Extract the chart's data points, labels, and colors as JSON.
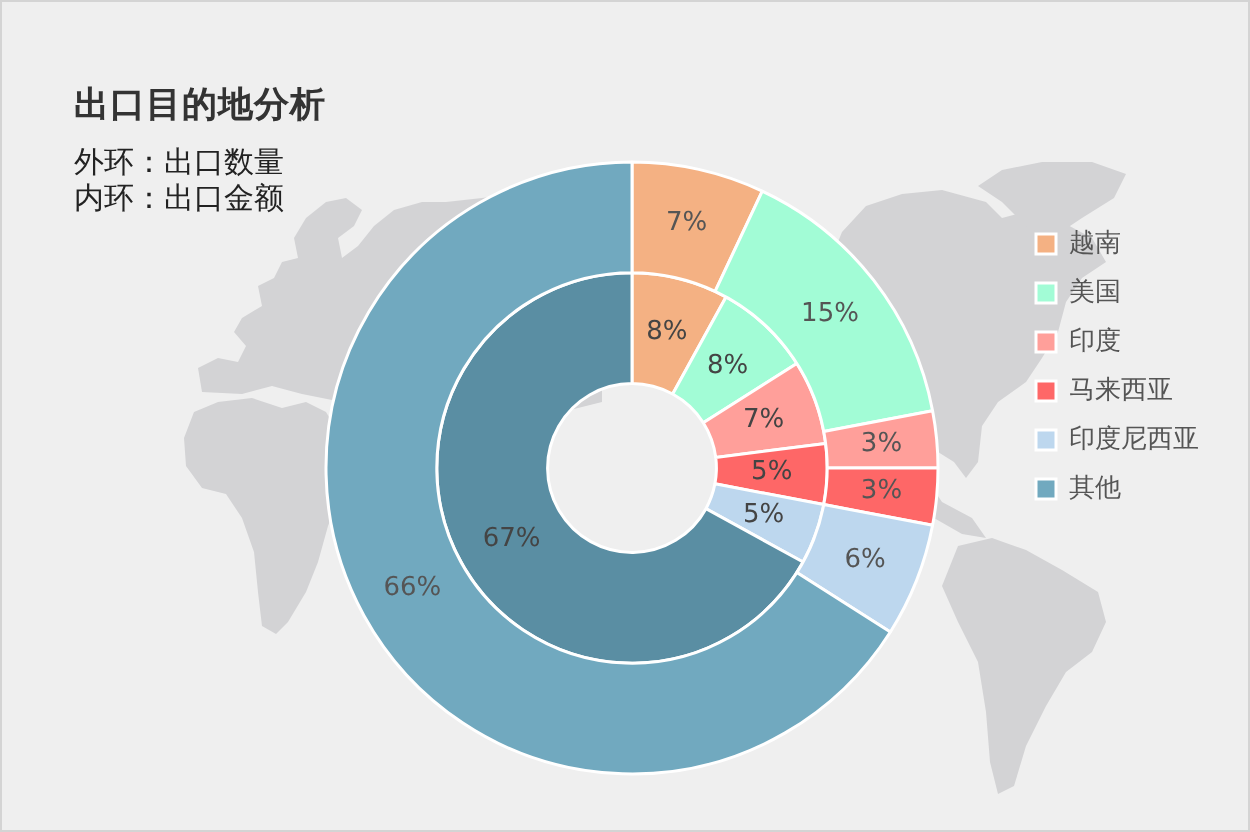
{
  "chart_data": {
    "type": "donut",
    "title": "出口目的地分析",
    "annotations": [
      "外环：出口数量",
      "内环：出口金额"
    ],
    "categories": [
      "越南",
      "美国",
      "印度",
      "马来西亚",
      "印度尼西亚",
      "其他"
    ],
    "series": [
      {
        "values": [
          7,
          15,
          3,
          3,
          6,
          66
        ],
        "colors": [
          "#f4b183",
          "#a2fcd6",
          "#ff9f9a",
          "#fe6767",
          "#bdd7ee",
          "#71a9bf"
        ],
        "value_labels": [
          "7%",
          "15%",
          "3%",
          "3%",
          "6%",
          "66%"
        ]
      },
      {
        "values": [
          8,
          8,
          7,
          5,
          5,
          67
        ],
        "colors": [
          "#f4b183",
          "#a2fcd6",
          "#ff9f9a",
          "#fe6767",
          "#bdd7ee",
          "#5a8ea3"
        ],
        "value_labels": [
          "8%",
          "8%",
          "7%",
          "5%",
          "5%",
          "67%"
        ]
      }
    ],
    "legend": "right"
  }
}
